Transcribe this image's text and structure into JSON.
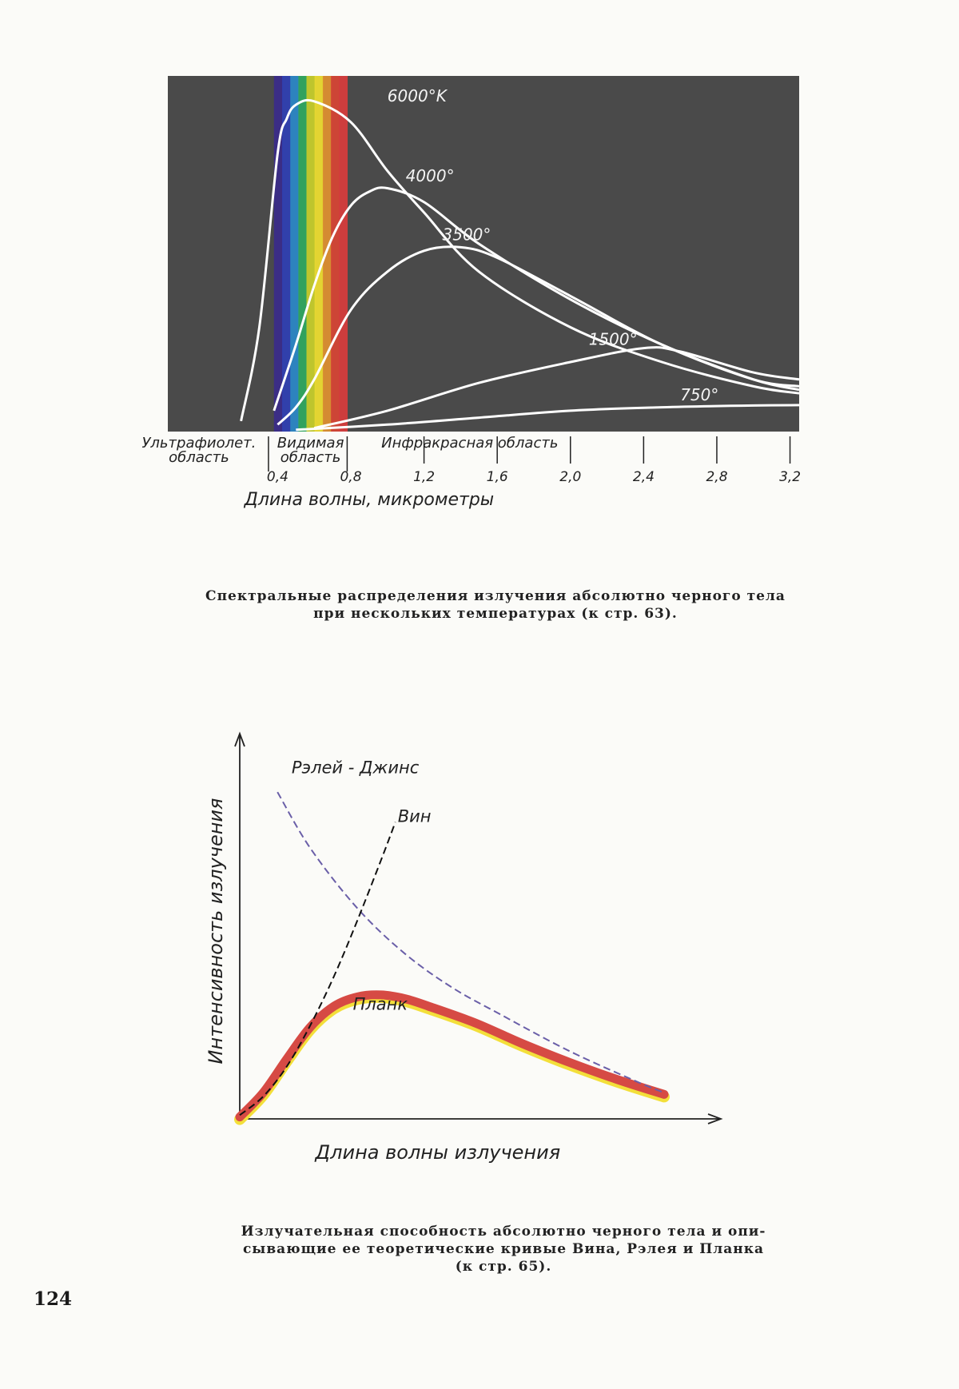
{
  "page_number": "124",
  "chart_data": [
    {
      "type": "line",
      "background_color": "#4a4a4a",
      "curve_color": "#ffffff",
      "xlabel": "Длина волны, микрометры",
      "xlim": [
        0,
        3.25
      ],
      "ylim": [
        0,
        1.0
      ],
      "x_ticks": [
        "0,4",
        "0,8",
        "1,2",
        "1,6",
        "2,0",
        "2,4",
        "2,8",
        "3,2"
      ],
      "x_tick_values": [
        0.4,
        0.8,
        1.2,
        1.6,
        2.0,
        2.4,
        2.8,
        3.2
      ],
      "regions": [
        {
          "label_lines": [
            "Ультрафиолет.",
            "область"
          ],
          "x_end": 0.35
        },
        {
          "label_lines": [
            "Видимая",
            "область"
          ],
          "x_start": 0.38,
          "x_end": 0.78
        },
        {
          "label_lines": [
            "Инфракрасная  область"
          ],
          "x_start": 0.78
        }
      ],
      "spectrum_band": {
        "x_range": [
          0.38,
          0.78
        ],
        "colors": [
          "#3a2a8a",
          "#2f3fb3",
          "#2a88c8",
          "#2fa860",
          "#c8cf2a",
          "#f0e030",
          "#e09030",
          "#d84434",
          "#d83c3c"
        ]
      },
      "series": [
        {
          "name": "6000°K",
          "x": [
            0.2,
            0.3,
            0.4,
            0.45,
            0.5,
            0.6,
            0.8,
            1.0,
            1.2,
            1.5,
            2.0,
            2.5,
            3.0,
            3.25
          ],
          "y": [
            0.03,
            0.3,
            0.8,
            0.9,
            0.94,
            0.95,
            0.89,
            0.75,
            0.63,
            0.46,
            0.3,
            0.2,
            0.13,
            0.11
          ]
        },
        {
          "name": "4000°",
          "x": [
            0.38,
            0.5,
            0.6,
            0.7,
            0.8,
            0.9,
            1.0,
            1.2,
            1.5,
            2.0,
            2.5,
            3.0,
            3.25
          ],
          "y": [
            0.06,
            0.25,
            0.42,
            0.56,
            0.65,
            0.69,
            0.7,
            0.66,
            0.54,
            0.38,
            0.25,
            0.15,
            0.12
          ]
        },
        {
          "name": "3500°",
          "x": [
            0.4,
            0.5,
            0.6,
            0.8,
            1.0,
            1.2,
            1.4,
            1.6,
            2.0,
            2.5,
            3.0,
            3.25
          ],
          "y": [
            0.02,
            0.07,
            0.15,
            0.35,
            0.46,
            0.52,
            0.53,
            0.5,
            0.39,
            0.25,
            0.15,
            0.13
          ]
        },
        {
          "name": "1500°",
          "x": [
            0.6,
            1.0,
            1.5,
            2.0,
            2.4,
            2.6,
            3.0,
            3.25
          ],
          "y": [
            0.01,
            0.06,
            0.14,
            0.2,
            0.24,
            0.23,
            0.17,
            0.15
          ]
        },
        {
          "name": "750°",
          "x": [
            0.5,
            1.0,
            1.5,
            2.0,
            2.5,
            3.0,
            3.25
          ],
          "y": [
            0.005,
            0.02,
            0.04,
            0.06,
            0.07,
            0.075,
            0.076
          ]
        }
      ]
    },
    {
      "type": "line",
      "xlabel": "Длина волны излучения",
      "ylabel": "Интенсивность излучения",
      "xlim": [
        0,
        10
      ],
      "ylim": [
        0,
        10
      ],
      "series": [
        {
          "name": "Рэлей - Джинс",
          "style": "dashed",
          "color": "#6a5fa8",
          "x": [
            0.8,
            1.5,
            2.5,
            3.5,
            4.5,
            5.5,
            7,
            8.5,
            9
          ],
          "y": [
            8.7,
            7.2,
            5.6,
            4.4,
            3.5,
            2.8,
            1.8,
            0.95,
            0.7
          ]
        },
        {
          "name": "Вин",
          "style": "dashed",
          "color": "#111111",
          "x": [
            0,
            0.5,
            1,
            1.5,
            2,
            2.5,
            3,
            3.3
          ],
          "y": [
            0.1,
            0.6,
            1.4,
            2.5,
            3.8,
            5.3,
            6.9,
            7.9
          ]
        },
        {
          "name": "Планк",
          "style": "thick",
          "color": "#d64a44",
          "x": [
            0,
            0.5,
            1,
            1.5,
            2,
            2.5,
            3,
            3.5,
            4,
            5,
            6,
            7,
            8,
            9
          ],
          "y": [
            0.05,
            0.7,
            1.6,
            2.45,
            3.0,
            3.25,
            3.3,
            3.2,
            3.0,
            2.55,
            2.0,
            1.5,
            1.05,
            0.65
          ]
        }
      ]
    }
  ],
  "captions": {
    "fig1": [
      "Спектральные распределения излучения абсолютно черного тела",
      "при нескольких температурах (к стр. 63)."
    ],
    "fig2": [
      "Излучательная способность абсолютно черного тела и опи-",
      "сывающие ее теоретические кривые Вина, Рэлея и Планка",
      "(к стр. 65)."
    ]
  }
}
